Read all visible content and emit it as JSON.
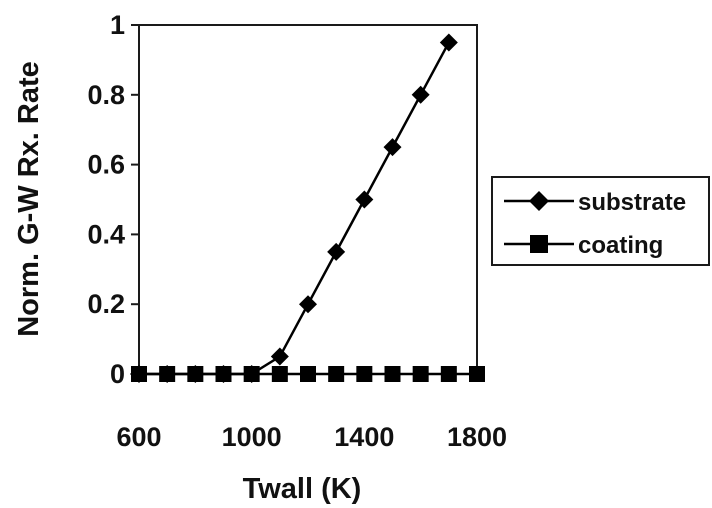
{
  "chart_data": {
    "type": "line",
    "xlabel": "Twall (K)",
    "ylabel": "Norm. G-W Rx. Rate",
    "xlim": [
      600,
      1800
    ],
    "ylim": [
      0,
      1
    ],
    "x_ticks": [
      "600",
      "1000",
      "1400",
      "1800"
    ],
    "y_ticks": [
      "0",
      "0.2",
      "0.4",
      "0.6",
      "0.8",
      "1"
    ],
    "grid": false,
    "legend_position": "right",
    "series": [
      {
        "name": "substrate",
        "marker": "diamond",
        "color": "#000000",
        "x": [
          600,
          700,
          800,
          900,
          1000,
          1100,
          1200,
          1300,
          1400,
          1500,
          1600,
          1700
        ],
        "y": [
          0,
          0,
          0,
          0,
          0,
          0.05,
          0.2,
          0.35,
          0.5,
          0.65,
          0.8,
          0.95
        ]
      },
      {
        "name": "coating",
        "marker": "square",
        "color": "#000000",
        "x": [
          600,
          700,
          800,
          900,
          1000,
          1100,
          1200,
          1300,
          1400,
          1500,
          1600,
          1700,
          1800
        ],
        "y": [
          0,
          0,
          0,
          0,
          0,
          0,
          0,
          0,
          0,
          0,
          0,
          0,
          0
        ]
      }
    ]
  }
}
